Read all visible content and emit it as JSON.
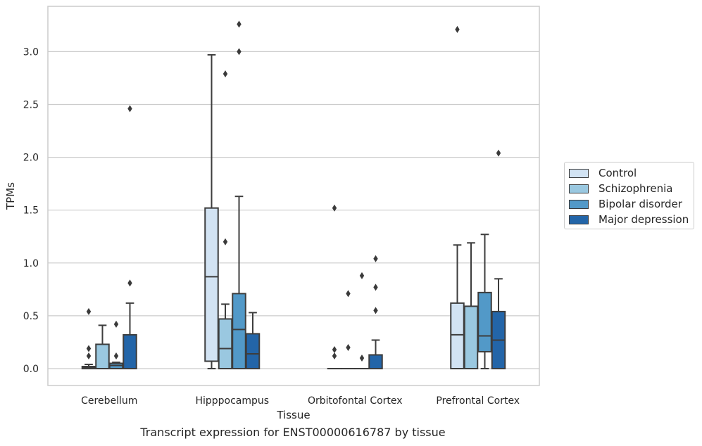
{
  "chart_data": {
    "type": "box",
    "title": "",
    "caption": "Transcript expression for ENST00000616787 by tissue",
    "xlabel": "Tissue",
    "ylabel": "TPMs",
    "ylim": [
      -0.16,
      3.43
    ],
    "yticks": [
      "0.0",
      "0.5",
      "1.0",
      "1.5",
      "2.0",
      "2.5",
      "3.0"
    ],
    "grid": true,
    "legend_position": "right",
    "categories": [
      "Cerebellum",
      "Hipppocampus",
      "Orbitofontal Cortex",
      "Prefrontal Cortex"
    ],
    "series": [
      {
        "name": "Control",
        "color": "#d2e3f3",
        "boxes": [
          {
            "whisker_low": 0.0,
            "q1": 0.0,
            "median": 0.01,
            "q3": 0.02,
            "whisker_high": 0.04,
            "outliers": [
              0.12,
              0.19,
              0.54
            ]
          },
          {
            "whisker_low": 0.0,
            "q1": 0.07,
            "median": 0.87,
            "q3": 1.52,
            "whisker_high": 2.97,
            "outliers": []
          },
          {
            "whisker_low": 0.0,
            "q1": 0.0,
            "median": 0.0,
            "q3": 0.0,
            "whisker_high": 0.0,
            "outliers": [
              0.12,
              0.18,
              1.52
            ]
          },
          {
            "whisker_low": 0.0,
            "q1": 0.0,
            "median": 0.32,
            "q3": 0.62,
            "whisker_high": 1.17,
            "outliers": [
              3.21
            ]
          }
        ]
      },
      {
        "name": "Schizophrenia",
        "color": "#9ac8e0",
        "boxes": [
          {
            "whisker_low": 0.0,
            "q1": 0.0,
            "median": 0.0,
            "q3": 0.23,
            "whisker_high": 0.41,
            "outliers": []
          },
          {
            "whisker_low": 0.0,
            "q1": 0.0,
            "median": 0.19,
            "q3": 0.47,
            "whisker_high": 0.61,
            "outliers": [
              1.2,
              2.79
            ]
          },
          {
            "whisker_low": 0.0,
            "q1": 0.0,
            "median": 0.0,
            "q3": 0.0,
            "whisker_high": 0.0,
            "outliers": [
              0.2,
              0.71
            ]
          },
          {
            "whisker_low": 0.0,
            "q1": 0.0,
            "median": 0.0,
            "q3": 0.59,
            "whisker_high": 1.19,
            "outliers": []
          }
        ]
      },
      {
        "name": "Bipolar disorder",
        "color": "#5299c8",
        "boxes": [
          {
            "whisker_low": 0.0,
            "q1": 0.0,
            "median": 0.03,
            "q3": 0.05,
            "whisker_high": 0.06,
            "outliers": [
              0.12,
              0.42
            ]
          },
          {
            "whisker_low": 0.0,
            "q1": 0.0,
            "median": 0.37,
            "q3": 0.71,
            "whisker_high": 1.63,
            "outliers": [
              3.0,
              3.26
            ]
          },
          {
            "whisker_low": 0.0,
            "q1": 0.0,
            "median": 0.0,
            "q3": 0.0,
            "whisker_high": 0.0,
            "outliers": [
              0.1,
              0.88
            ]
          },
          {
            "whisker_low": 0.0,
            "q1": 0.16,
            "median": 0.31,
            "q3": 0.72,
            "whisker_high": 1.27,
            "outliers": []
          }
        ]
      },
      {
        "name": "Major depression",
        "color": "#2365a8",
        "boxes": [
          {
            "whisker_low": 0.0,
            "q1": 0.0,
            "median": 0.0,
            "q3": 0.32,
            "whisker_high": 0.62,
            "outliers": [
              0.81,
              2.46
            ]
          },
          {
            "whisker_low": 0.0,
            "q1": 0.0,
            "median": 0.14,
            "q3": 0.33,
            "whisker_high": 0.53,
            "outliers": []
          },
          {
            "whisker_low": 0.0,
            "q1": 0.0,
            "median": 0.0,
            "q3": 0.13,
            "whisker_high": 0.27,
            "outliers": [
              0.55,
              0.77,
              1.04
            ]
          },
          {
            "whisker_low": 0.0,
            "q1": 0.0,
            "median": 0.27,
            "q3": 0.54,
            "whisker_high": 0.85,
            "outliers": [
              2.04
            ]
          }
        ]
      }
    ]
  }
}
